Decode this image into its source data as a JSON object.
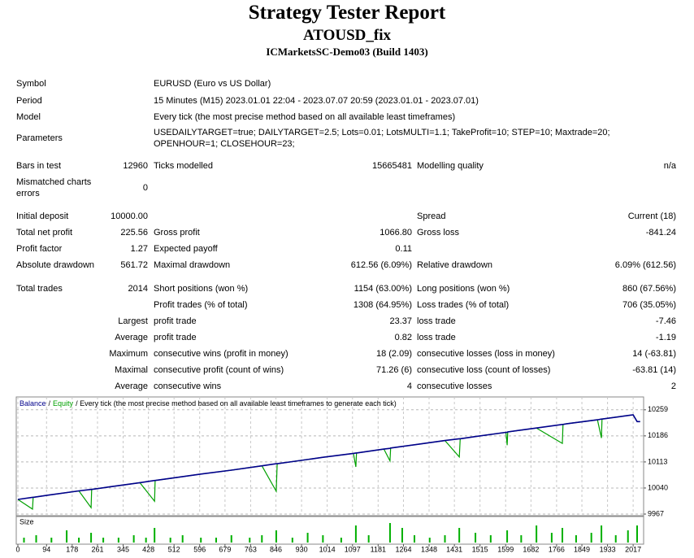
{
  "header": {
    "title": "Strategy Tester Report",
    "subtitle": "ATOUSD_fix",
    "server": "ICMarketsSC-Demo03 (Build 1403)"
  },
  "info": [
    {
      "label": "Symbol",
      "value": "EURUSD (Euro vs US Dollar)"
    },
    {
      "label": "Period",
      "value": "15 Minutes (M15) 2023.01.01 22:04 - 2023.07.07 20:59 (2023.01.01 - 2023.07.01)"
    },
    {
      "label": "Model",
      "value": "Every tick (the most precise method based on all available least timeframes)"
    },
    {
      "label": "Parameters",
      "value": "USEDAILYTARGET=true; DAILYTARGET=2.5; Lots=0.01; LotsMULTI=1.1; TakeProfit=10; STEP=10; Maxtrade=20; OPENHOUR=1; CLOSEHOUR=23;"
    }
  ],
  "table": {
    "rows": [
      [
        "Bars in test",
        "12960",
        "Ticks modelled",
        "15665481",
        "Modelling quality",
        "n/a"
      ],
      [
        "Mismatched charts errors",
        "0",
        null,
        null,
        null,
        null
      ],
      [
        "Initial deposit",
        "10000.00",
        null,
        null,
        "Spread",
        "Current (18)"
      ],
      [
        "Total net profit",
        "225.56",
        "Gross profit",
        "1066.80",
        "Gross loss",
        "-841.24"
      ],
      [
        "Profit factor",
        "1.27",
        "Expected payoff",
        "0.11",
        null,
        null
      ],
      [
        "Absolute drawdown",
        "561.72",
        "Maximal drawdown",
        "612.56 (6.09%)",
        "Relative drawdown",
        "6.09% (612.56)"
      ],
      [
        "Total trades",
        "2014",
        "Short positions (won %)",
        "1154 (63.00%)",
        "Long positions (won %)",
        "860 (67.56%)"
      ],
      [
        null,
        null,
        "Profit trades (% of total)",
        "1308 (64.95%)",
        "Loss trades (% of total)",
        "706 (35.05%)"
      ],
      [
        null,
        "Largest",
        "profit trade",
        "23.37",
        "loss trade",
        "-7.46"
      ],
      [
        null,
        "Average",
        "profit trade",
        "0.82",
        "loss trade",
        "-1.19"
      ],
      [
        null,
        "Maximum",
        "consecutive wins (profit in money)",
        "18 (2.09)",
        "consecutive losses (loss in money)",
        "14 (-63.81)"
      ],
      [
        null,
        "Maximal",
        "consecutive profit (count of wins)",
        "71.26 (6)",
        "consecutive loss (count of losses)",
        "-63.81 (14)"
      ],
      [
        null,
        "Average",
        "consecutive wins",
        "4",
        "consecutive losses",
        "2"
      ]
    ]
  },
  "chart_data": {
    "type": "line",
    "legend_separator": "/",
    "legend_note": "/ Every tick (the most precise method based on all available least timeframes to generate each tick)",
    "x": [
      0,
      48,
      50,
      100,
      200,
      240,
      242,
      300,
      400,
      448,
      450,
      500,
      600,
      700,
      800,
      847,
      850,
      900,
      1000,
      1100,
      1108,
      1110,
      1200,
      1220,
      1222,
      1300,
      1400,
      1447,
      1450,
      1500,
      1600,
      1604,
      1606,
      1700,
      1785,
      1787,
      1800,
      1900,
      1913,
      1915,
      2000,
      2017,
      2030,
      2040
    ],
    "series": [
      {
        "name": "Balance",
        "color": "#00008b",
        "values": [
          10008,
          10014,
          10014,
          10020,
          10032,
          10036,
          10036,
          10043,
          10055,
          10061,
          10061,
          10067,
          10079,
          10090,
          10102,
          10108,
          10108,
          10114,
          10126,
          10137,
          10138,
          10138,
          10149,
          10151,
          10152,
          10161,
          10173,
          10178,
          10178,
          10184,
          10196,
          10196,
          10197,
          10208,
          10218,
          10218,
          10220,
          10231,
          10233,
          10233,
          10243,
          10245,
          10226,
          10226
        ]
      },
      {
        "name": "Equity",
        "color": "#00a000",
        "values": [
          10008,
          9981,
          10014,
          10020,
          10032,
          9985,
          10036,
          10043,
          10055,
          10003,
          10061,
          10067,
          10079,
          10090,
          10102,
          10031,
          10108,
          10114,
          10126,
          10137,
          10099,
          10138,
          10149,
          10116,
          10152,
          10161,
          10173,
          10127,
          10178,
          10184,
          10196,
          10160,
          10197,
          10208,
          10165,
          10218,
          10220,
          10231,
          10180,
          10233,
          10243,
          10245,
          10226,
          10226
        ]
      }
    ],
    "xlim": [
      0,
      2046
    ],
    "xticks": [
      0,
      94,
      178,
      261,
      345,
      428,
      512,
      596,
      679,
      763,
      846,
      930,
      1014,
      1097,
      1181,
      1264,
      1348,
      1431,
      1515,
      1599,
      1682,
      1766,
      1849,
      1933,
      2017
    ],
    "ylim": [
      9967,
      10295
    ],
    "yticks": [
      9967,
      10040,
      10113,
      10186,
      10259
    ],
    "grid": true,
    "size": {
      "label": "Size",
      "color": "#00b000",
      "ylim": [
        0,
        0.1
      ],
      "x": [
        20,
        60,
        110,
        160,
        200,
        240,
        280,
        330,
        380,
        420,
        448,
        500,
        540,
        600,
        650,
        700,
        760,
        800,
        847,
        900,
        950,
        1000,
        1060,
        1108,
        1150,
        1220,
        1260,
        1300,
        1350,
        1400,
        1447,
        1500,
        1550,
        1604,
        1650,
        1700,
        1750,
        1785,
        1830,
        1880,
        1913,
        1960,
        2000,
        2030
      ],
      "values": [
        0.02,
        0.03,
        0.02,
        0.05,
        0.02,
        0.04,
        0.02,
        0.02,
        0.03,
        0.02,
        0.06,
        0.02,
        0.03,
        0.02,
        0.02,
        0.03,
        0.02,
        0.03,
        0.05,
        0.02,
        0.04,
        0.03,
        0.02,
        0.07,
        0.03,
        0.08,
        0.06,
        0.03,
        0.02,
        0.03,
        0.06,
        0.04,
        0.03,
        0.05,
        0.03,
        0.07,
        0.04,
        0.06,
        0.03,
        0.04,
        0.07,
        0.03,
        0.05,
        0.07
      ]
    }
  }
}
